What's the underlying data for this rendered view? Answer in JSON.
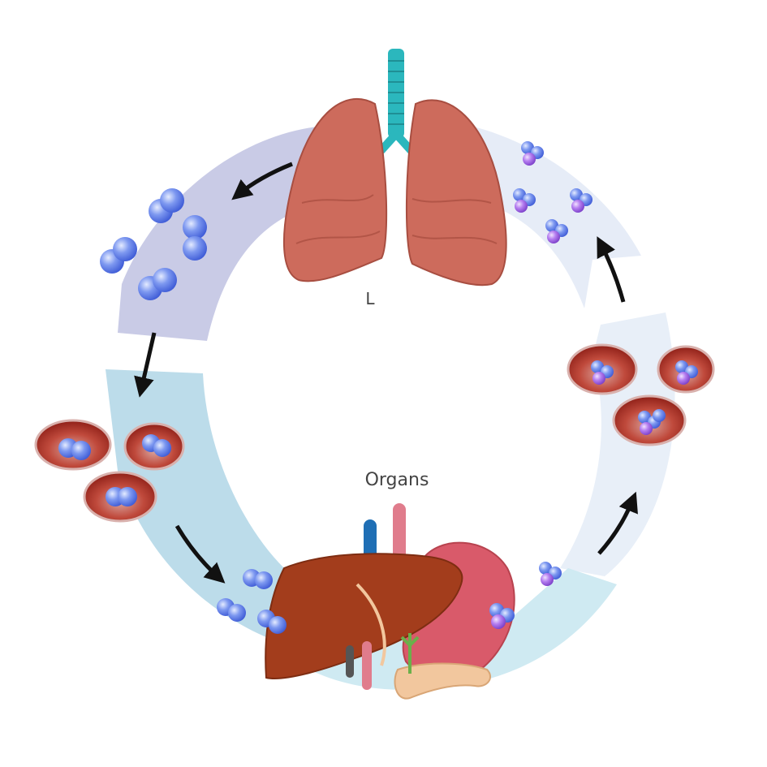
{
  "labels": {
    "lungs": "L",
    "organs": "Organs"
  },
  "colors": {
    "arc_top_left": "#c9cbe6",
    "arc_left": "#bcdcea",
    "arc_right": "#e6ecf7",
    "arc_bottom": "#cfeaf2",
    "lung": "#cd6b5c",
    "trachea": "#2bb7bd",
    "liver": "#a33d1c",
    "stomach": "#d95a6a",
    "pancreas": "#f2c79e",
    "blue_molecule": "#5f7fe8",
    "purple_molecule": "#a25ee0",
    "red_cell": "#b0322a",
    "arrow": "#111111"
  },
  "icons": {
    "lungs": "lungs-icon",
    "digestive_organs": "organs-icon",
    "blue_molecule": "blue-molecule-icon",
    "purple_molecule": "purple-molecule-icon",
    "red_blood_cell": "red-blood-cell-icon",
    "arrow": "cycle-arrow-icon"
  }
}
